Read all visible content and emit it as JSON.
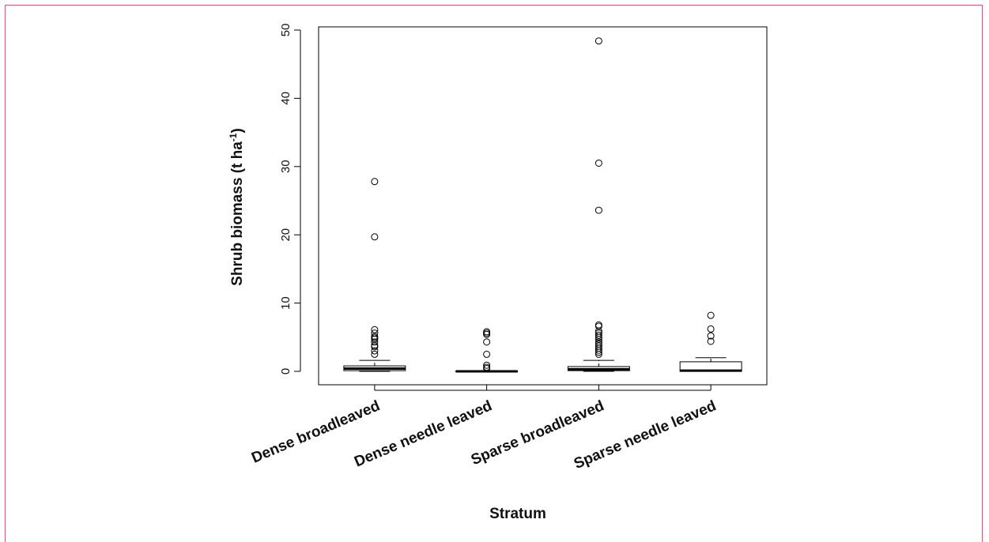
{
  "chart_data": {
    "type": "boxplot",
    "xlabel": "Stratum",
    "ylabel": {
      "main": "Shrub biomass (t ha",
      "sup": "-1",
      "close": ")"
    },
    "ylim": [
      0,
      50
    ],
    "yticks": [
      0,
      10,
      20,
      30,
      40,
      50
    ],
    "categories": [
      "Dense broadleaved",
      "Dense needle leaved",
      "Sparse broadleaved",
      "Sparse needle leaved"
    ],
    "boxes": [
      {
        "name": "Dense broadleaved",
        "whisker_low": 0,
        "q1": 0.1,
        "median": 0.4,
        "q3": 0.8,
        "whisker_high": 1.6,
        "outliers": [
          27.8,
          19.7,
          6.1,
          5.6,
          5.1,
          4.9,
          4.7,
          4.3,
          3.8,
          3.6,
          3.0,
          2.5
        ]
      },
      {
        "name": "Dense needle leaved",
        "whisker_low": 0,
        "q1": 0.0,
        "median": 0.0,
        "q3": 0.05,
        "whisker_high": 0.1,
        "outliers": [
          5.8,
          5.6,
          5.4,
          4.3,
          2.5,
          0.9,
          0.6,
          0.4
        ]
      },
      {
        "name": "Sparse broadleaved",
        "whisker_low": 0,
        "q1": 0.1,
        "median": 0.3,
        "q3": 0.7,
        "whisker_high": 1.6,
        "outliers": [
          48.4,
          30.5,
          23.6,
          6.8,
          6.6,
          5.9,
          5.6,
          5.3,
          5.0,
          4.7,
          4.3,
          4.0,
          3.7,
          3.4,
          3.1,
          2.8,
          2.5
        ]
      },
      {
        "name": "Sparse needle leaved",
        "whisker_low": 0,
        "q1": 0.0,
        "median": 0.1,
        "q3": 1.4,
        "whisker_high": 2.0,
        "outliers": [
          8.2,
          6.2,
          5.2,
          4.4
        ]
      }
    ],
    "colors": {
      "box_fill": "#ffffff",
      "stroke": "#000000",
      "frame": "#d8587a"
    }
  }
}
